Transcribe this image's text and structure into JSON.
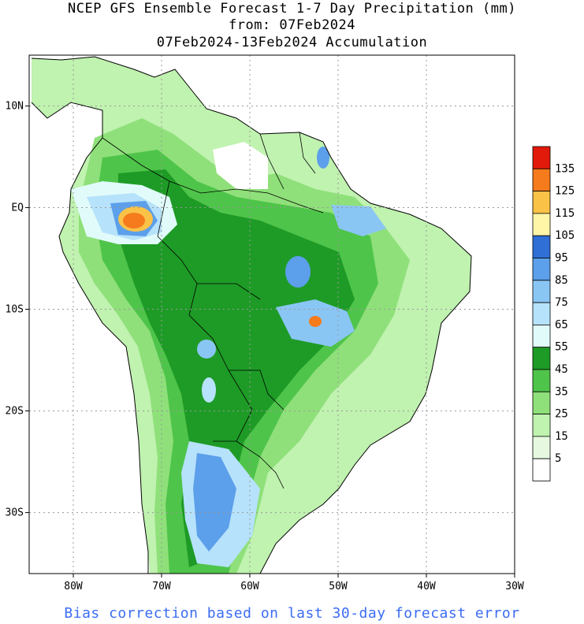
{
  "title": {
    "line1": "NCEP GFS Ensemble Forecast 1-7 Day Precipitation (mm)",
    "line2": "from: 07Feb2024",
    "line3": "07Feb2024-13Feb2024 Accumulation"
  },
  "footer": "Bias correction based on last 30-day forecast error",
  "axes": {
    "longitude_labels": [
      "80W",
      "70W",
      "60W",
      "50W",
      "40W",
      "30W"
    ],
    "latitude_labels": [
      "10N",
      "EQ",
      "10S",
      "20S",
      "30S"
    ],
    "lon_range": [
      -85,
      -30
    ],
    "lat_range": [
      15,
      -36
    ]
  },
  "legend": {
    "labels": [
      "5",
      "15",
      "25",
      "35",
      "45",
      "55",
      "65",
      "75",
      "85",
      "95",
      "105",
      "115",
      "125",
      "135"
    ],
    "colors": [
      "#ffffff",
      "#e6f9e0",
      "#c0f2b0",
      "#8fe07a",
      "#4fc44a",
      "#1e9b26",
      "#e1fbfb",
      "#b6e2fb",
      "#8ac6f4",
      "#5c9fea",
      "#2f6fd6",
      "#fff6a8",
      "#fbc248",
      "#f57b1d",
      "#e21a0c"
    ]
  },
  "colors": {
    "grid": "#999999",
    "coast": "#000000",
    "footer_text": "#3b6cf5"
  }
}
